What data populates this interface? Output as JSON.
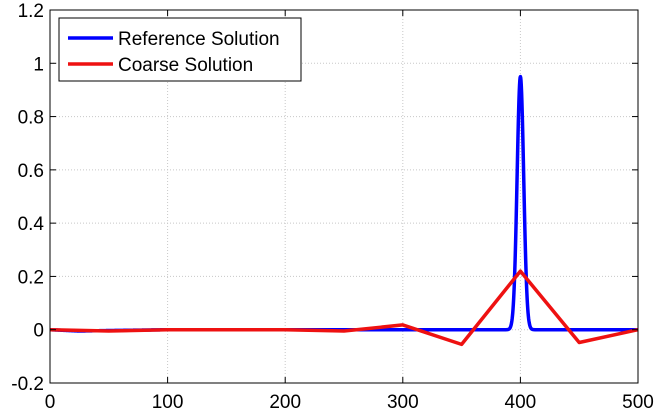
{
  "chart_data": {
    "type": "line",
    "title": "",
    "xlabel": "",
    "ylabel": "",
    "xlim": [
      0,
      500
    ],
    "ylim": [
      -0.2,
      1.2
    ],
    "xticks": [
      0,
      100,
      200,
      300,
      400,
      500
    ],
    "yticks": [
      -0.2,
      0,
      0.2,
      0.4,
      0.6,
      0.8,
      1,
      1.2
    ],
    "xtick_labels": [
      "0",
      "100",
      "200",
      "300",
      "400",
      "500"
    ],
    "ytick_labels": [
      "-0.2",
      "0",
      "0.2",
      "0.4",
      "0.6",
      "0.8",
      "1",
      "1.2"
    ],
    "grid": true,
    "legend_position": "top-left",
    "series": [
      {
        "name": "Reference Solution",
        "color": "#0000ff",
        "kind": "gaussian",
        "x_range": [
          0,
          500
        ],
        "peak_x": 400,
        "peak_y": 0.95,
        "width": 2.8,
        "baseline_points": [
          [
            0,
            0
          ],
          [
            25,
            -0.005
          ],
          [
            50,
            -0.003
          ],
          [
            100,
            0
          ],
          [
            200,
            0
          ],
          [
            300,
            0
          ],
          [
            385,
            0
          ],
          [
            415,
            0
          ],
          [
            500,
            0
          ]
        ]
      },
      {
        "name": "Coarse Solution",
        "color": "#ee1111",
        "x": [
          0,
          50,
          100,
          150,
          200,
          250,
          300,
          350,
          400,
          450,
          500
        ],
        "y": [
          0,
          -0.005,
          0,
          0,
          0,
          -0.005,
          0.018,
          -0.055,
          0.22,
          -0.048,
          0
        ]
      }
    ]
  }
}
